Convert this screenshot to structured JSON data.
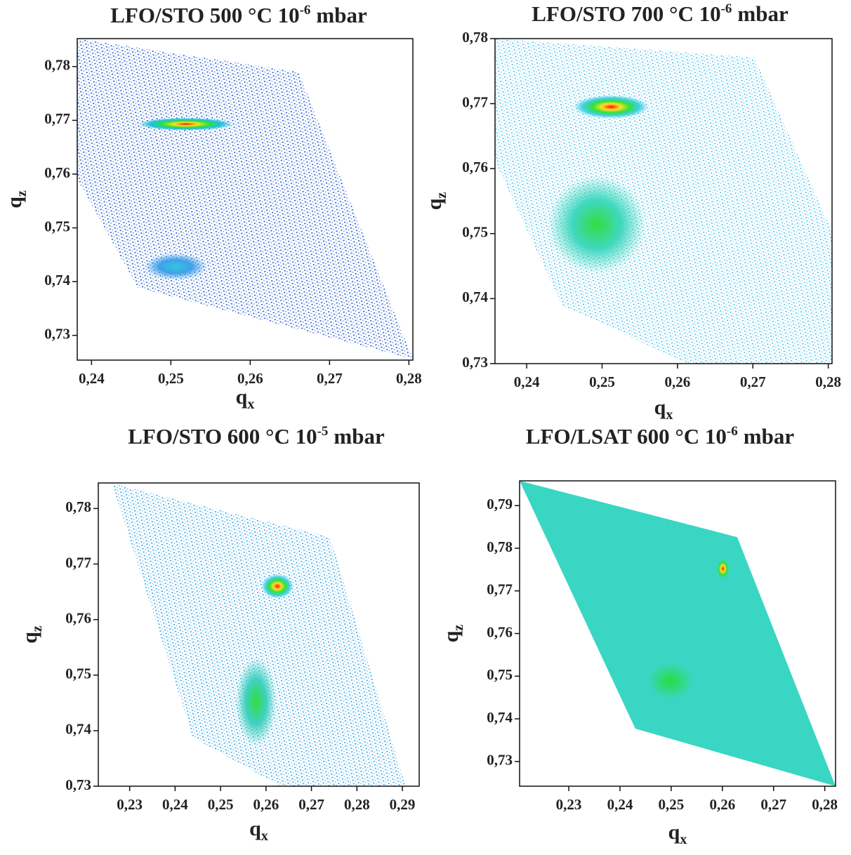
{
  "chart_data": [
    {
      "type": "rsm",
      "title": "LFO/STO 500 °C 10",
      "title_exponent": "-6",
      "title_suffix": "mbar",
      "x_label": {
        "base": "q",
        "sub": "x"
      },
      "y_label": {
        "base": "q",
        "sub": "z"
      },
      "xlim": [
        0.2382,
        0.2805
      ],
      "ylim": [
        0.7254,
        0.7852
      ],
      "xticks": [
        {
          "value": 0.24,
          "label": "0,24"
        },
        {
          "value": 0.25,
          "label": "0,25"
        },
        {
          "value": 0.26,
          "label": "0,26"
        },
        {
          "value": 0.27,
          "label": "0,27"
        },
        {
          "value": 0.28,
          "label": "0,28"
        }
      ],
      "yticks": [
        {
          "value": 0.73,
          "label": "0,73"
        },
        {
          "value": 0.74,
          "label": "0,74"
        },
        {
          "value": 0.75,
          "label": "0,75"
        },
        {
          "value": 0.76,
          "label": "0,76"
        },
        {
          "value": 0.77,
          "label": "0,77"
        },
        {
          "value": 0.78,
          "label": "0,78"
        }
      ],
      "region": {
        "color": "#2b63d8",
        "fill_style": "dots",
        "x": [
          0.2382,
          0.2661,
          0.2805,
          0.2458,
          0.2382
        ],
        "y": [
          0.7852,
          0.779,
          0.7256,
          0.7389,
          0.7591
        ]
      },
      "peaks": [
        {
          "x": 0.2519,
          "y": 0.7693,
          "rx": 0.006,
          "ry": 0.0012,
          "colors": [
            "#ff1010",
            "#ffe020",
            "#30e040",
            "#20c0e0"
          ]
        },
        {
          "x": 0.2506,
          "y": 0.7428,
          "rx": 0.004,
          "ry": 0.0025,
          "colors": [
            "#30c8e0",
            "#40a0e8"
          ]
        }
      ]
    },
    {
      "type": "rsm",
      "title": "LFO/STO 700 °C 10",
      "title_exponent": "-6",
      "title_suffix": "mbar",
      "x_label": {
        "base": "q",
        "sub": "x"
      },
      "y_label": {
        "base": "q",
        "sub": "z"
      },
      "xlim": [
        0.2358,
        0.2805
      ],
      "ylim": [
        0.73,
        0.78
      ],
      "xticks": [
        {
          "value": 0.24,
          "label": "0,24"
        },
        {
          "value": 0.25,
          "label": "0,25"
        },
        {
          "value": 0.26,
          "label": "0,26"
        },
        {
          "value": 0.27,
          "label": "0,27"
        },
        {
          "value": 0.28,
          "label": "0,28"
        }
      ],
      "yticks": [
        {
          "value": 0.73,
          "label": "0,73"
        },
        {
          "value": 0.74,
          "label": "0,74"
        },
        {
          "value": 0.75,
          "label": "0,75"
        },
        {
          "value": 0.76,
          "label": "0,76"
        },
        {
          "value": 0.77,
          "label": "0,77"
        },
        {
          "value": 0.78,
          "label": "0,78"
        }
      ],
      "region": {
        "color": "#4fc3ee",
        "fill_style": "dots",
        "x": [
          0.2358,
          0.2702,
          0.2805,
          0.2805,
          0.2614,
          0.2447,
          0.2358
        ],
        "y": [
          0.78,
          0.7771,
          0.7503,
          0.73,
          0.73,
          0.739,
          0.7611
        ]
      },
      "peaks": [
        {
          "x": 0.2512,
          "y": 0.7695,
          "rx": 0.005,
          "ry": 0.0018,
          "colors": [
            "#ff1010",
            "#ffe020",
            "#30e040",
            "#40d0e0"
          ]
        },
        {
          "x": 0.2493,
          "y": 0.7514,
          "rx": 0.0065,
          "ry": 0.0075,
          "colors": [
            "#30dd40",
            "#40d8c0"
          ]
        }
      ]
    },
    {
      "type": "rsm",
      "title": "LFO/STO 600 °C 10",
      "title_exponent": "-5",
      "title_suffix": "mbar",
      "x_label": {
        "base": "q",
        "sub": "x"
      },
      "y_label": {
        "base": "q",
        "sub": "z"
      },
      "xlim": [
        0.2231,
        0.2937
      ],
      "ylim": [
        0.73,
        0.7846
      ],
      "xticks": [
        {
          "value": 0.23,
          "label": "0,23"
        },
        {
          "value": 0.24,
          "label": "0,24"
        },
        {
          "value": 0.25,
          "label": "0,25"
        },
        {
          "value": 0.26,
          "label": "0,26"
        },
        {
          "value": 0.27,
          "label": "0,27"
        },
        {
          "value": 0.28,
          "label": "0,28"
        },
        {
          "value": 0.29,
          "label": "0,29"
        }
      ],
      "yticks": [
        {
          "value": 0.73,
          "label": "0,73"
        },
        {
          "value": 0.74,
          "label": "0,74"
        },
        {
          "value": 0.75,
          "label": "0,75"
        },
        {
          "value": 0.76,
          "label": "0,76"
        },
        {
          "value": 0.77,
          "label": "0,77"
        },
        {
          "value": 0.78,
          "label": "0,78"
        }
      ],
      "region": {
        "color": "#38a8e8",
        "fill_style": "dots",
        "x": [
          0.2261,
          0.2741,
          0.2907,
          0.2632,
          0.2439
        ],
        "y": [
          0.7845,
          0.7748,
          0.73,
          0.73,
          0.7388
        ]
      },
      "peaks": [
        {
          "x": 0.2625,
          "y": 0.766,
          "rx": 0.0035,
          "ry": 0.0022,
          "colors": [
            "#ff1010",
            "#ffe020",
            "#30e040",
            "#40d0e0"
          ]
        },
        {
          "x": 0.2578,
          "y": 0.7452,
          "rx": 0.0045,
          "ry": 0.008,
          "colors": [
            "#30dd40",
            "#40d0c0"
          ]
        }
      ]
    },
    {
      "type": "rsm",
      "title": "LFO/LSAT 600 °C 10",
      "title_exponent": "-6",
      "title_suffix": "mbar",
      "x_label": {
        "base": "q",
        "sub": "x"
      },
      "y_label": {
        "base": "q",
        "sub": "z"
      },
      "xlim": [
        0.2204,
        0.2821
      ],
      "ylim": [
        0.7242,
        0.7958
      ],
      "xticks": [
        {
          "value": 0.23,
          "label": "0,23"
        },
        {
          "value": 0.24,
          "label": "0,24"
        },
        {
          "value": 0.25,
          "label": "0,25"
        },
        {
          "value": 0.26,
          "label": "0,26"
        },
        {
          "value": 0.27,
          "label": "0,27"
        },
        {
          "value": 0.28,
          "label": "0,28"
        }
      ],
      "yticks": [
        {
          "value": 0.73,
          "label": "0,73"
        },
        {
          "value": 0.74,
          "label": "0,74"
        },
        {
          "value": 0.75,
          "label": "0,75"
        },
        {
          "value": 0.76,
          "label": "0,76"
        },
        {
          "value": 0.77,
          "label": "0,77"
        },
        {
          "value": 0.78,
          "label": "0,78"
        },
        {
          "value": 0.79,
          "label": "0,79"
        }
      ],
      "region": {
        "color": "#3ad6c4",
        "fill_style": "solid",
        "x": [
          0.2204,
          0.2629,
          0.2821,
          0.243
        ],
        "y": [
          0.7958,
          0.7826,
          0.7242,
          0.7377
        ]
      },
      "peaks": [
        {
          "x": 0.2601,
          "y": 0.7752,
          "rx": 0.0012,
          "ry": 0.0022,
          "colors": [
            "#ff1010",
            "#ffe020",
            "#30e040"
          ]
        },
        {
          "x": 0.2499,
          "y": 0.7489,
          "rx": 0.009,
          "ry": 0.0085,
          "colors": [
            "#26dd40",
            "#3ad6c4"
          ]
        }
      ]
    }
  ]
}
